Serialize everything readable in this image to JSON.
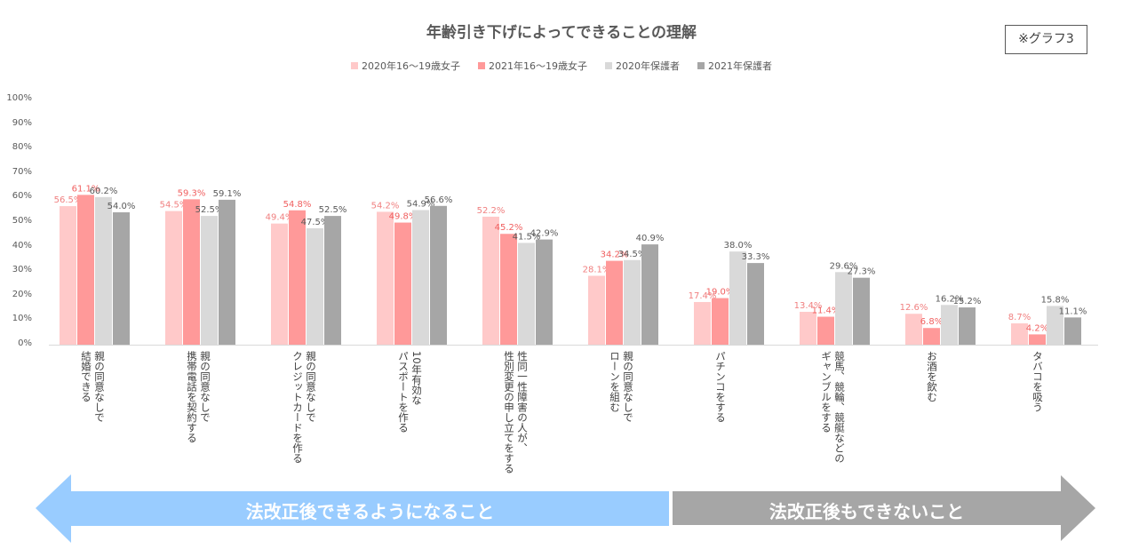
{
  "title": "年齢引き下げによってできることの理解",
  "badge": "※グラフ3",
  "arrows": {
    "left_label": "法改正後できるようになること",
    "right_label": "法改正後もできないこと",
    "left_color": "#99ccff",
    "right_color": "#a6a6a6"
  },
  "chart_data": {
    "type": "bar",
    "title": "年齢引き下げによってできることの理解",
    "y_ticks": [
      "0%",
      "10%",
      "20%",
      "30%",
      "40%",
      "50%",
      "60%",
      "70%",
      "80%",
      "90%",
      "100%"
    ],
    "ylim": [
      0,
      100
    ],
    "grid": false,
    "legend_position": "top",
    "categories": [
      "親の同意なしで\n結婚できる",
      "親の同意なしで\n携帯電話を契約する",
      "親の同意なしで\nクレジットカードを作る",
      "10年有効な\nパスポートを作る",
      "性同一性障害の人が、\n性別変更の申し立てをする",
      "親の同意なしで\nローンを組む",
      "パチンコをする",
      "競馬、競輪、競艇などの\nギャンブルをする",
      "お酒を飲む",
      "タバコを吸う"
    ],
    "series": [
      {
        "name": "2020年16〜19歳女子",
        "color": "#ffc9c9",
        "label_color": "#f08080",
        "values": [
          56.5,
          54.5,
          49.4,
          54.2,
          52.2,
          28.1,
          17.4,
          13.4,
          12.6,
          8.7
        ],
        "labels": [
          "56.5%",
          "54.5%",
          "49.4%",
          "54.2%",
          "52.2%",
          "28.1%",
          "17.4%",
          "13.4%",
          "12.6%",
          "8.7%"
        ]
      },
      {
        "name": "2021年16〜19歳女子",
        "color": "#ff9999",
        "label_color": "#f06060",
        "values": [
          61.1,
          59.3,
          54.8,
          49.8,
          45.2,
          34.2,
          19.0,
          11.4,
          6.8,
          4.2
        ],
        "labels": [
          "61.1%",
          "59.3%",
          "54.8%",
          "49.8%",
          "45.2%",
          "34.2%",
          "19.0%",
          "11.4%",
          "6.8%",
          "4.2%"
        ]
      },
      {
        "name": "2020年保護者",
        "color": "#d9d9d9",
        "label_color": "#595959",
        "values": [
          60.2,
          52.5,
          47.5,
          54.9,
          41.5,
          34.5,
          38.0,
          29.6,
          16.2,
          15.8
        ],
        "labels": [
          "60.2%",
          "52.5%",
          "47.5%",
          "54.9%",
          "41.5%",
          "34.5%",
          "38.0%",
          "29.6%",
          "16.2%",
          "15.8%"
        ]
      },
      {
        "name": "2021年保護者",
        "color": "#a6a6a6",
        "label_color": "#595959",
        "values": [
          54.0,
          59.1,
          52.5,
          56.6,
          42.9,
          40.9,
          33.3,
          27.3,
          15.2,
          11.1
        ],
        "labels": [
          "54.0%",
          "59.1%",
          "52.5%",
          "56.6%",
          "42.9%",
          "40.9%",
          "33.3%",
          "27.3%",
          "15.2%",
          "11.1%"
        ]
      }
    ]
  }
}
